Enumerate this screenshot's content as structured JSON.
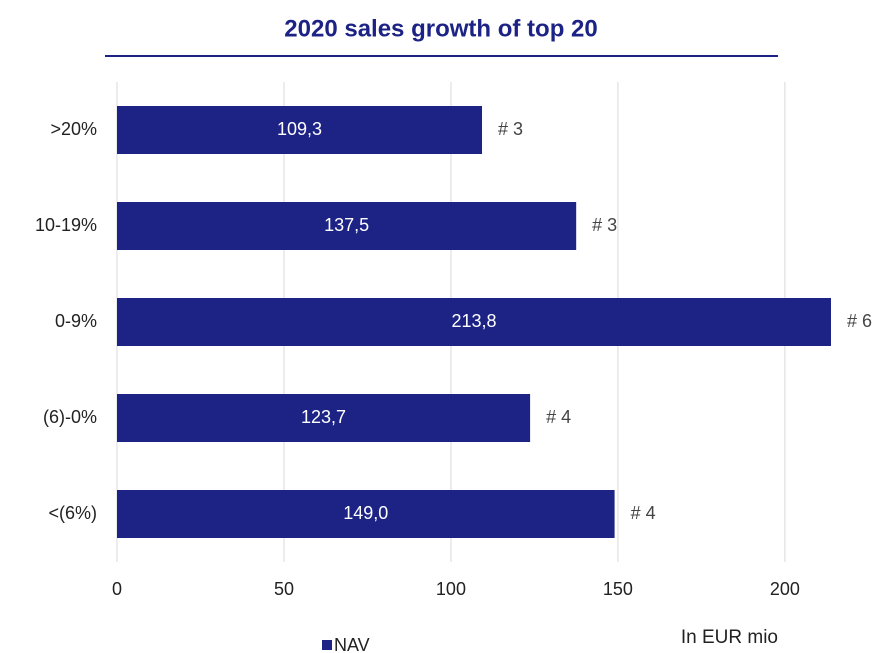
{
  "chart_data": {
    "type": "hbar",
    "title": "2020 sales growth of top 20",
    "categories": [
      ">20%",
      "10-19%",
      "0-9%",
      "(6)-0%",
      "<(6%)"
    ],
    "series": [
      {
        "name": "NAV",
        "color": "#1c2385",
        "values": [
          109.3,
          137.5,
          213.8,
          123.7,
          149.0
        ],
        "value_labels": [
          "109,3",
          "137,5",
          "213,8",
          "123,7",
          "149,0"
        ]
      }
    ],
    "annotations": [
      "# 3",
      "# 3",
      "# 6",
      "# 4",
      "# 4"
    ],
    "note": "In EUR mio",
    "xlim": [
      0,
      215
    ],
    "xticks": [
      0,
      50,
      100,
      150,
      200
    ],
    "grid": true,
    "legend": "bottom"
  }
}
